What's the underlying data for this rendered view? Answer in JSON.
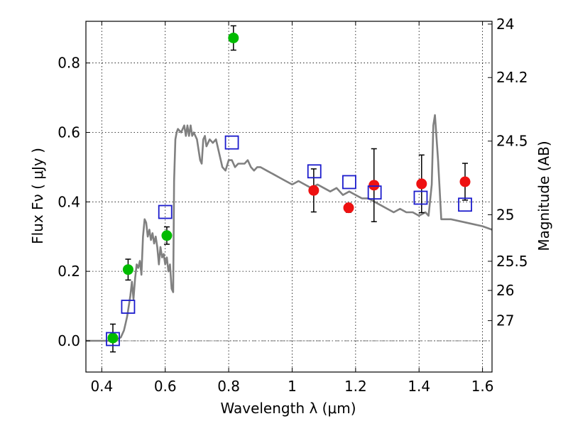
{
  "chart_data": {
    "type": "scatter",
    "title": "",
    "xlabel": "Wavelength  λ (μm)",
    "ylabel": "Flux  Fν  ( μJy )",
    "y2label": "Magnitude (AB)",
    "xlim": [
      0.35,
      1.63
    ],
    "ylim": [
      -0.09,
      0.92
    ],
    "grid": true,
    "x_ticks": [
      0.4,
      0.6,
      0.8,
      1.0,
      1.2,
      1.4,
      1.6
    ],
    "x_tick_labels": [
      "0.4",
      "0.6",
      "0.8",
      "1",
      "1.2",
      "1.4",
      "1.6"
    ],
    "y_ticks": [
      0.0,
      0.2,
      0.4,
      0.6,
      0.8
    ],
    "y_tick_labels": [
      "0.0",
      "0.2",
      "0.4",
      "0.6",
      "0.8"
    ],
    "y2_ticks": [
      {
        "label": "24",
        "flux": 0.912
      },
      {
        "label": "24.2",
        "flux": 0.758
      },
      {
        "label": "24.5",
        "flux": 0.575
      },
      {
        "label": "25",
        "flux": 0.363
      },
      {
        "label": "25.5",
        "flux": 0.229
      },
      {
        "label": "26",
        "flux": 0.145
      },
      {
        "label": "27",
        "flux": 0.058
      }
    ],
    "zero_line": 0.0,
    "series": [
      {
        "name": "model-spectrum",
        "kind": "line",
        "color": "#808080",
        "x": [
          0.35,
          0.44,
          0.46,
          0.47,
          0.475,
          0.48,
          0.49,
          0.495,
          0.5,
          0.505,
          0.51,
          0.515,
          0.52,
          0.525,
          0.53,
          0.535,
          0.54,
          0.545,
          0.55,
          0.555,
          0.56,
          0.565,
          0.57,
          0.575,
          0.58,
          0.585,
          0.59,
          0.595,
          0.6,
          0.605,
          0.61,
          0.615,
          0.62,
          0.625,
          0.628,
          0.632,
          0.636,
          0.64,
          0.65,
          0.66,
          0.665,
          0.67,
          0.675,
          0.68,
          0.685,
          0.69,
          0.7,
          0.71,
          0.715,
          0.72,
          0.725,
          0.73,
          0.74,
          0.75,
          0.76,
          0.77,
          0.78,
          0.79,
          0.8,
          0.81,
          0.82,
          0.83,
          0.84,
          0.85,
          0.86,
          0.87,
          0.88,
          0.89,
          0.9,
          0.92,
          0.94,
          0.96,
          0.98,
          1.0,
          1.02,
          1.04,
          1.06,
          1.08,
          1.1,
          1.12,
          1.14,
          1.16,
          1.18,
          1.2,
          1.22,
          1.24,
          1.26,
          1.28,
          1.3,
          1.32,
          1.34,
          1.36,
          1.38,
          1.4,
          1.42,
          1.43,
          1.44,
          1.445,
          1.45,
          1.46,
          1.47,
          1.5,
          1.55,
          1.6,
          1.63
        ],
        "values": [
          0.0,
          0.0,
          0.01,
          0.03,
          0.05,
          0.07,
          0.13,
          0.17,
          0.12,
          0.18,
          0.22,
          0.21,
          0.23,
          0.19,
          0.3,
          0.35,
          0.34,
          0.3,
          0.32,
          0.29,
          0.31,
          0.28,
          0.3,
          0.27,
          0.22,
          0.27,
          0.24,
          0.25,
          0.22,
          0.24,
          0.2,
          0.22,
          0.15,
          0.14,
          0.46,
          0.58,
          0.6,
          0.61,
          0.6,
          0.62,
          0.59,
          0.62,
          0.59,
          0.62,
          0.59,
          0.6,
          0.58,
          0.52,
          0.51,
          0.58,
          0.59,
          0.56,
          0.58,
          0.57,
          0.58,
          0.54,
          0.5,
          0.49,
          0.52,
          0.52,
          0.5,
          0.51,
          0.51,
          0.51,
          0.52,
          0.5,
          0.49,
          0.5,
          0.5,
          0.49,
          0.48,
          0.47,
          0.46,
          0.45,
          0.46,
          0.45,
          0.44,
          0.45,
          0.44,
          0.43,
          0.44,
          0.42,
          0.43,
          0.42,
          0.41,
          0.41,
          0.4,
          0.39,
          0.38,
          0.37,
          0.38,
          0.37,
          0.37,
          0.36,
          0.37,
          0.36,
          0.45,
          0.62,
          0.65,
          0.52,
          0.35,
          0.35,
          0.34,
          0.33,
          0.32
        ]
      },
      {
        "name": "green-points",
        "kind": "circle",
        "color": "#00bb00",
        "x": [
          0.435,
          0.483,
          0.605,
          0.815
        ],
        "values": [
          0.008,
          0.205,
          0.303,
          0.872
        ],
        "errors": [
          0.04,
          0.03,
          0.025,
          0.035
        ]
      },
      {
        "name": "red-points",
        "kind": "circle",
        "color": "#ee1111",
        "x": [
          1.068,
          1.178,
          1.258,
          1.408,
          1.545
        ],
        "values": [
          0.433,
          0.383,
          0.448,
          0.452,
          0.458
        ],
        "errors": [
          0.062,
          0.013,
          0.105,
          0.083,
          0.053
        ]
      },
      {
        "name": "blue-model-squares",
        "kind": "square",
        "color": "#1b1bcc",
        "x": [
          0.435,
          0.483,
          0.6,
          0.81,
          1.07,
          1.18,
          1.26,
          1.405,
          1.545
        ],
        "values": [
          0.005,
          0.098,
          0.371,
          0.571,
          0.488,
          0.457,
          0.427,
          0.412,
          0.392
        ]
      }
    ]
  }
}
